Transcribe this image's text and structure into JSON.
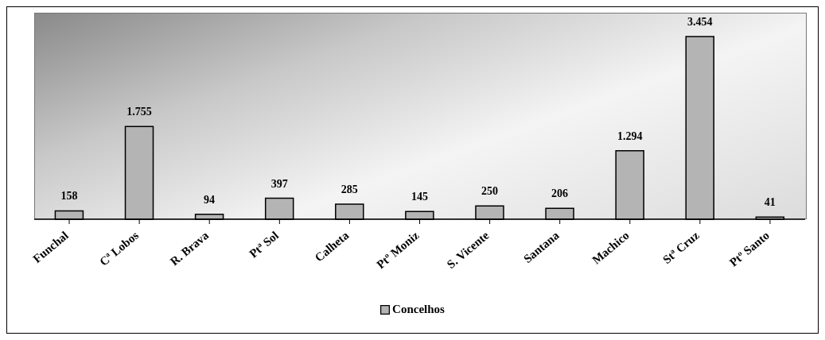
{
  "chart_data": {
    "type": "bar",
    "categories": [
      "Funchal",
      "Cª Lobos",
      "R. Brava",
      "Ptª Sol",
      "Calheta",
      "Ptº Moniz",
      "S. Vicente",
      "Santana",
      "Machico",
      "Stª Cruz",
      "Ptº Santo"
    ],
    "series": [
      {
        "name": "Concelhos",
        "color": "#b4b4b4",
        "values": [
          158,
          1755,
          94,
          397,
          285,
          145,
          250,
          206,
          1294,
          3454,
          41
        ],
        "value_labels": [
          "158",
          "1.755",
          "94",
          "397",
          "285",
          "145",
          "250",
          "206",
          "1.294",
          "3.454",
          "41"
        ]
      }
    ],
    "legend": "bottom"
  }
}
